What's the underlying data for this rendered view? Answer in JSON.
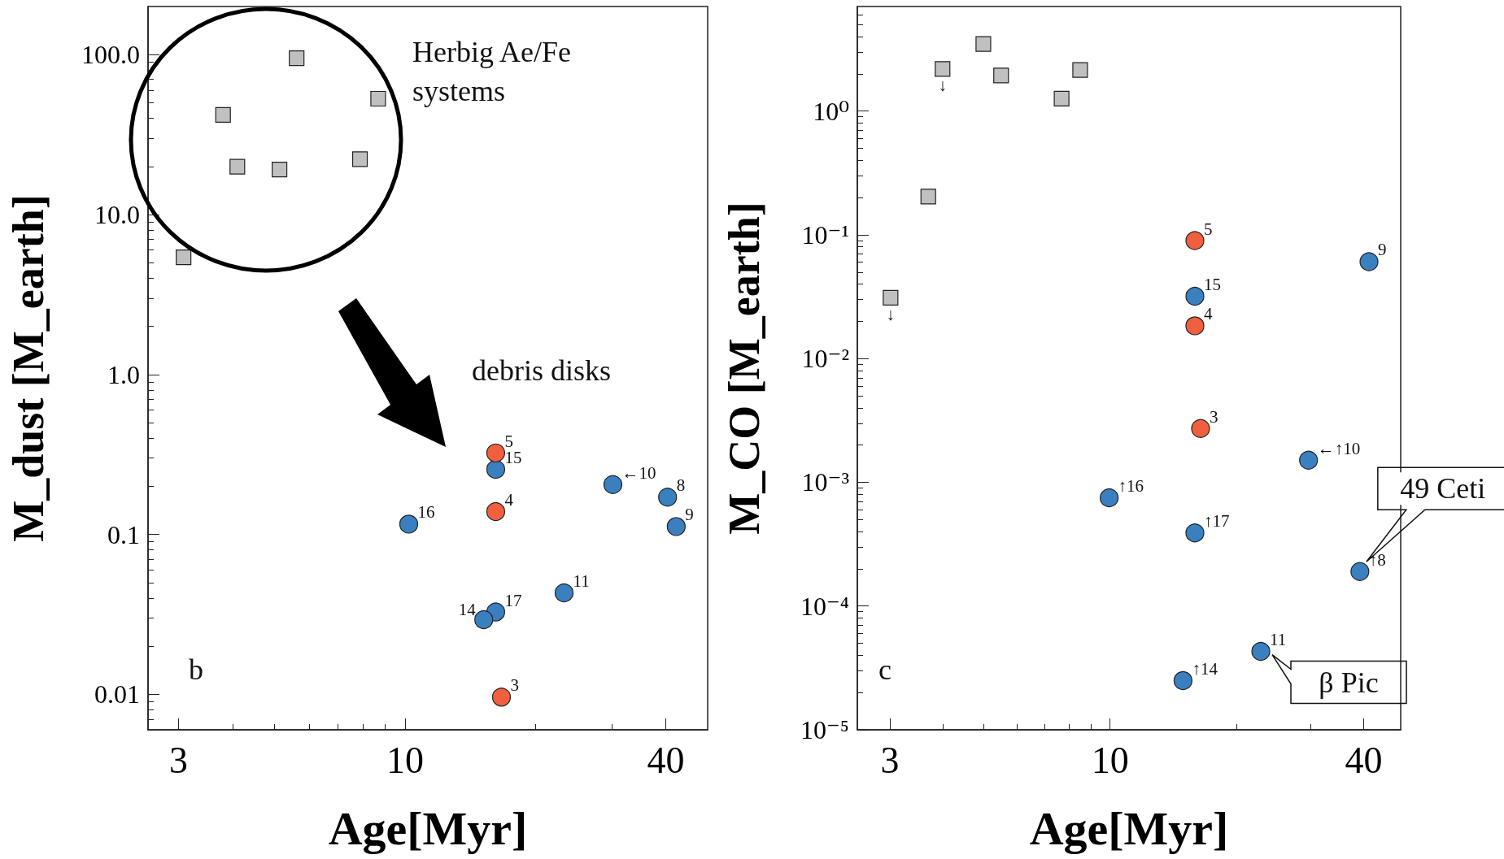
{
  "chart_data": [
    {
      "type": "scatter",
      "xlabel": "Age[Myr]",
      "ylabel": "M_dust [M_earth]",
      "log": "xy",
      "grid": false,
      "xlim": [
        2.55,
        50
      ],
      "xticks": [
        3,
        10,
        40
      ],
      "ylim": [
        0.006,
        200
      ],
      "yticks": [
        {
          "value": 0.01,
          "label": "0.01"
        },
        {
          "value": 0.1,
          "label": "0.1"
        },
        {
          "value": 1,
          "label": "1.0"
        },
        {
          "value": 10,
          "label": "10.0"
        },
        {
          "value": 100,
          "label": "100.0"
        }
      ],
      "annotations": [
        "Herbig Ae/Fe systems",
        "debris disks",
        "b",
        {
          "text": "16",
          "x": 10.2,
          "y": 0.116
        },
        {
          "text": "15",
          "x": 16.2,
          "y": 0.255
        },
        {
          "text": "17",
          "x": 16.2,
          "y": 0.0327
        },
        {
          "text": "14",
          "x": 15.2,
          "y": 0.0293
        },
        {
          "text": "11",
          "x": 23.3,
          "y": 0.0431
        },
        {
          "text": "←10",
          "x": 30.2,
          "y": 0.205
        },
        {
          "text": "8",
          "x": 40.4,
          "y": 0.171
        },
        {
          "text": "9",
          "x": 42.3,
          "y": 0.112
        },
        {
          "text": "5",
          "x": 16.2,
          "y": 0.323
        },
        {
          "text": "4",
          "x": 16.2,
          "y": 0.139
        },
        {
          "text": "3",
          "x": 16.7,
          "y": 0.0096
        }
      ],
      "series": [
        {
          "marker": "square",
          "color": "#c0c0c0",
          "x": [
            3.08,
            3.8,
            4.1,
            5.13,
            5.62,
            7.87,
            8.67
          ],
          "values": [
            5.4,
            42,
            19.9,
            19.1,
            95,
            22.2,
            53
          ]
        },
        {
          "marker": "circle",
          "color": "#3a80c1",
          "x": [
            10.2,
            16.2,
            16.2,
            15.2,
            23.3,
            30.2,
            40.4,
            42.3
          ],
          "values": [
            0.116,
            0.255,
            0.0327,
            0.0293,
            0.0431,
            0.205,
            0.171,
            0.112
          ]
        },
        {
          "marker": "circle",
          "color": "#f0603f",
          "x": [
            16.2,
            16.2,
            16.7
          ],
          "values": [
            0.323,
            0.139,
            0.0096
          ]
        }
      ]
    },
    {
      "type": "scatter",
      "xlabel": "Age[Myr]",
      "ylabel": "M_CO [M_earth]",
      "log": "xy",
      "grid": false,
      "xlim": [
        2.51,
        49
      ],
      "xticks": [
        3,
        10,
        40
      ],
      "ylim": [
        1e-05,
        7
      ],
      "yticks": [
        {
          "value": 1e-05,
          "label": "10⁻⁵"
        },
        {
          "value": 0.0001,
          "label": "10⁻⁴"
        },
        {
          "value": 0.001,
          "label": "10⁻³"
        },
        {
          "value": 0.01,
          "label": "10⁻²"
        },
        {
          "value": 0.1,
          "label": "10⁻¹"
        },
        {
          "value": 1,
          "label": "10⁰"
        }
      ],
      "annotations": [
        "c",
        {
          "text": "49 Ceti",
          "x": 39.2,
          "y": 0.00019
        },
        {
          "text": "β Pic",
          "x": 22.8,
          "y": 4.3e-05
        },
        {
          "text": "↓",
          "x": 3.01,
          "y": 0.031
        },
        {
          "text": "↓",
          "x": 4.0,
          "y": 2.19
        },
        {
          "text": "15",
          "x": 15.9,
          "y": 0.0319
        },
        {
          "text": "←↑10",
          "x": 29.6,
          "y": 0.00151
        },
        {
          "text": "↑16",
          "x": 9.95,
          "y": 0.00075
        },
        {
          "text": "↑17",
          "x": 15.9,
          "y": 0.00039
        },
        {
          "text": "↑8",
          "x": 39.2,
          "y": 0.00019
        },
        {
          "text": "9",
          "x": 41.2,
          "y": 0.0607
        },
        {
          "text": "11",
          "x": 22.8,
          "y": 4.3e-05
        },
        {
          "text": "↑14",
          "x": 14.9,
          "y": 2.5e-05
        },
        {
          "text": "5",
          "x": 15.9,
          "y": 0.0898
        },
        {
          "text": "4",
          "x": 15.9,
          "y": 0.0184
        },
        {
          "text": "3",
          "x": 16.4,
          "y": 0.00272
        }
      ],
      "series": [
        {
          "marker": "square",
          "color": "#c0c0c0",
          "x": [
            3.01,
            3.7,
            4.0,
            5.0,
            5.51,
            7.67,
            8.49
          ],
          "values": [
            0.031,
            0.204,
            2.19,
            3.49,
            1.94,
            1.26,
            2.15
          ]
        },
        {
          "marker": "circle",
          "color": "#3a80c1",
          "x": [
            15.9,
            29.6,
            9.95,
            15.9,
            39.2,
            41.2,
            22.8,
            14.9
          ],
          "values": [
            0.0319,
            0.00151,
            0.00075,
            0.00039,
            0.00019,
            0.0607,
            4.3e-05,
            2.5e-05
          ]
        },
        {
          "marker": "circle",
          "color": "#f0603f",
          "x": [
            15.9,
            15.9,
            16.4
          ],
          "values": [
            0.0898,
            0.0184,
            0.00272
          ]
        }
      ]
    }
  ]
}
